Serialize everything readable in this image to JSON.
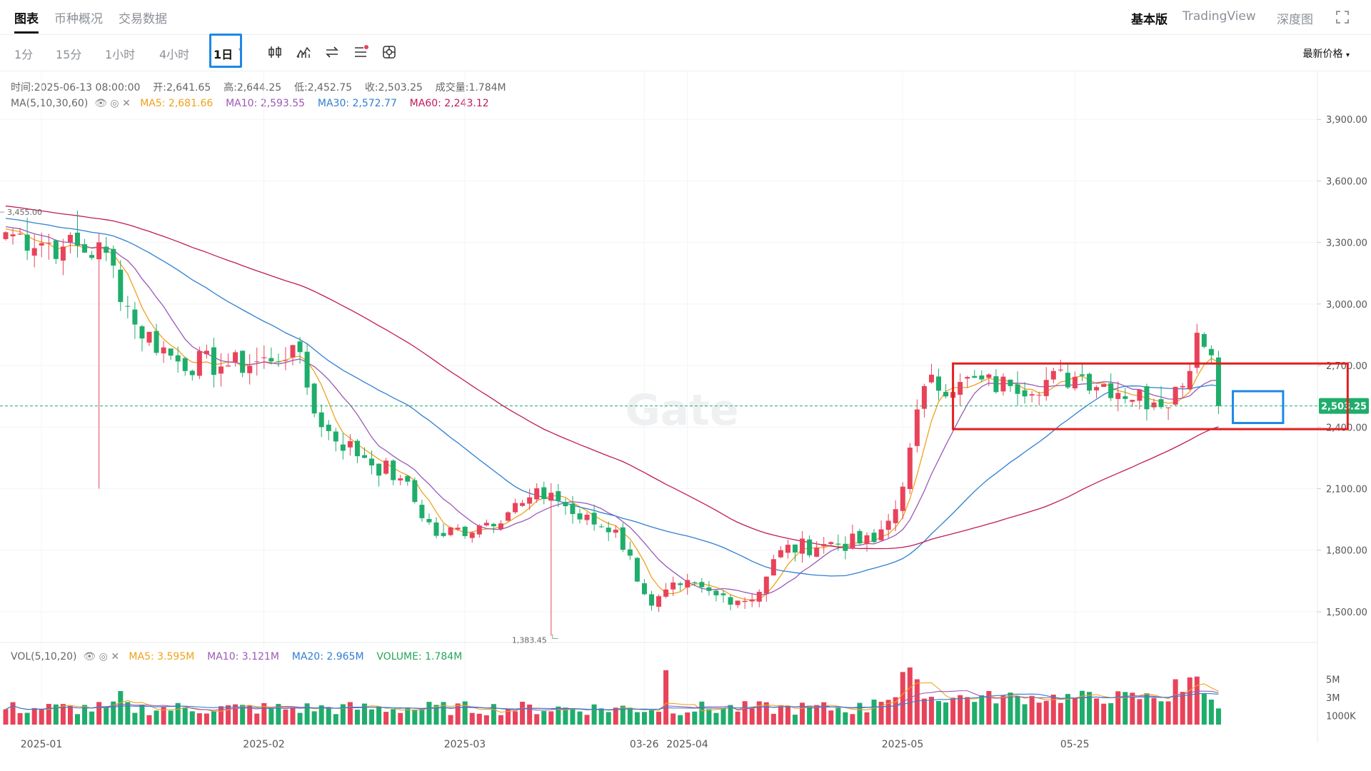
{
  "header": {
    "tabs": [
      {
        "label": "图表",
        "active": true
      },
      {
        "label": "币种概况",
        "active": false
      },
      {
        "label": "交易数据",
        "active": false
      }
    ],
    "right_tabs": [
      {
        "label": "基本版",
        "active": true
      },
      {
        "label": "TradingView",
        "active": false
      },
      {
        "label": "深度图",
        "active": false
      }
    ],
    "fullscreen_icon": "expand-icon"
  },
  "toolbar": {
    "timeframes": [
      {
        "label": "1分",
        "active": false
      },
      {
        "label": "15分",
        "active": false
      },
      {
        "label": "1小时",
        "active": false
      },
      {
        "label": "4小时",
        "active": false
      },
      {
        "label": "1日",
        "active": true
      }
    ],
    "tools": [
      "candle-type-icon",
      "indicator-icon",
      "swap-icon",
      "list-settings-icon",
      "crosshair-settings-icon"
    ],
    "price_type": "最新价格"
  },
  "ohlc": {
    "time_label": "时间:",
    "time": "2025-06-13 08:00:00",
    "open_label": "开:",
    "open": "2,641.65",
    "high_label": "高:",
    "high": "2,644.25",
    "low_label": "低:",
    "low": "2,452.75",
    "close_label": "收:",
    "close": "2,503.25",
    "vol_label": "成交量:",
    "vol": "1.784M"
  },
  "ma_legend": {
    "name": "MA(5,10,30,60)",
    "items": [
      {
        "label": "MA5: 2,681.66",
        "color": "#f0a11b"
      },
      {
        "label": "MA10: 2,593.55",
        "color": "#9b59b6"
      },
      {
        "label": "MA30: 2,572.77",
        "color": "#2f7fd1"
      },
      {
        "label": "MA60: 2,243.12",
        "color": "#c2185b"
      }
    ]
  },
  "vol_legend": {
    "name": "VOL(5,10,20)",
    "items": [
      {
        "label": "MA5: 3.595M",
        "color": "#f0a11b"
      },
      {
        "label": "MA10: 3.121M",
        "color": "#9b59b6"
      },
      {
        "label": "MA20: 2.965M",
        "color": "#2f7fd1"
      },
      {
        "label": "VOLUME: 1.784M",
        "color": "#26a65b"
      }
    ]
  },
  "colors": {
    "up": "#e8435a",
    "down": "#1fad6b",
    "annotation_red": "#e02020",
    "annotation_blue": "#1e88e5"
  },
  "chart_data": {
    "type": "candlestick",
    "price_axis": {
      "min": 1350,
      "max": 3960,
      "ticks": [
        1500,
        1800,
        2100,
        2400,
        2700,
        3000,
        3300,
        3600,
        3900
      ],
      "tick_labels": [
        "1,500.00",
        "1,800.00",
        "2,100.00",
        "2,400.00",
        "2,700.00",
        "3,000.00",
        "3,300.00",
        "3,600.00",
        "3,900.00"
      ]
    },
    "current_price": 2503.25,
    "current_price_label": "2,503.25",
    "high_marker": {
      "value": 3455,
      "label": "3,455.00"
    },
    "low_marker": {
      "value": 1383.45,
      "label": "1,383.45"
    },
    "x_labels": [
      {
        "label": "2025-01",
        "index": 0
      },
      {
        "label": "2025-02",
        "index": 31
      },
      {
        "label": "2025-03",
        "index": 59
      },
      {
        "label": "03-26",
        "index": 84
      },
      {
        "label": "2025-04",
        "index": 90
      },
      {
        "label": "2025-05",
        "index": 120
      },
      {
        "label": "05-25",
        "index": 144
      }
    ],
    "anchors": [
      [
        0,
        3350
      ],
      [
        8,
        3280
      ],
      [
        14,
        3250
      ],
      [
        18,
        2900
      ],
      [
        24,
        2720
      ],
      [
        31,
        2700
      ],
      [
        37,
        2720
      ],
      [
        40,
        2800
      ],
      [
        44,
        2400
      ],
      [
        50,
        2250
      ],
      [
        55,
        2150
      ],
      [
        60,
        1870
      ],
      [
        66,
        1920
      ],
      [
        72,
        2030
      ],
      [
        76,
        2080
      ],
      [
        80,
        1950
      ],
      [
        85,
        1900
      ],
      [
        90,
        1530
      ],
      [
        94,
        1630
      ],
      [
        99,
        1580
      ],
      [
        104,
        1560
      ],
      [
        108,
        1800
      ],
      [
        114,
        1830
      ],
      [
        121,
        1840
      ],
      [
        124,
        2000
      ],
      [
        126,
        2300
      ],
      [
        128,
        2600
      ],
      [
        133,
        2620
      ],
      [
        140,
        2600
      ],
      [
        150,
        2650
      ],
      [
        160,
        2520
      ],
      [
        164,
        2600
      ],
      [
        166,
        2860
      ],
      [
        168,
        2750
      ],
      [
        169,
        2503.25
      ]
    ],
    "volume_axis": {
      "ticks": [
        1,
        3,
        5
      ],
      "tick_labels": [
        "1000K",
        "3M",
        "5M"
      ],
      "max": 6.3
    },
    "volume_highlights": [
      {
        "index": 16,
        "value": 3.7
      },
      {
        "index": 92,
        "value": 6.0
      },
      {
        "index": 125,
        "value": 5.8
      },
      {
        "index": 126,
        "value": 6.3
      },
      {
        "index": 127,
        "value": 5.0
      },
      {
        "index": 163,
        "value": 5.0
      },
      {
        "index": 165,
        "value": 5.2
      },
      {
        "index": 166,
        "value": 5.3
      }
    ],
    "watermark": "Gate",
    "annotations": [
      {
        "shape": "rect",
        "color": "red",
        "from_index": 132,
        "to_index": 187,
        "price_top": 2710,
        "price_bottom": 2390
      },
      {
        "shape": "rect",
        "color": "blue",
        "from_index": 171,
        "to_index": 178,
        "price_top": 2575,
        "price_bottom": 2420
      }
    ]
  }
}
